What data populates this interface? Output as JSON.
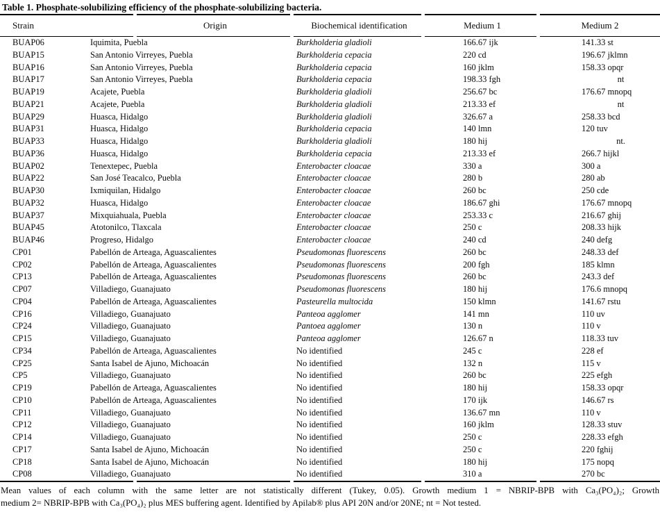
{
  "title": "Table 1. Phosphate-solubilizing efficiency of the phosphate-solubilizing bacteria.",
  "table": {
    "columns": [
      "Strain",
      "Origin",
      "Biochemical identification",
      "Medium 1",
      "Medium 2"
    ],
    "rows": [
      {
        "strain": "BUAP06",
        "origin": "Iquimita, Puebla",
        "id": "Burkholderia gladioli",
        "id_italic": true,
        "m1": "166.67 ijk",
        "m2": "141.33 st"
      },
      {
        "strain": "BUAP15",
        "origin": "San Antonio Virreyes, Puebla",
        "id": "Burkholderia cepacia",
        "id_italic": true,
        "m1": "220 cd",
        "m2": "196.67 jklmn"
      },
      {
        "strain": "BUAP16",
        "origin": "San Antonio Virreyes, Puebla",
        "id": "Burkholderia cepacia",
        "id_italic": true,
        "m1": "160 jklm",
        "m2": "158.33 opqr"
      },
      {
        "strain": "BUAP17",
        "origin": "San Antonio Virreyes, Puebla",
        "id": "Burkholderia cepacia",
        "id_italic": true,
        "m1": "198.33 fgh",
        "m2": "nt"
      },
      {
        "strain": "BUAP19",
        "origin": "Acajete, Puebla",
        "id": "Burkholderia gladioli",
        "id_italic": true,
        "m1": "256.67 bc",
        "m2": "176.67 mnopq"
      },
      {
        "strain": "BUAP21",
        "origin": "Acajete, Puebla",
        "id": "Burkholderia gladioli",
        "id_italic": true,
        "m1": "213.33 ef",
        "m2": "nt"
      },
      {
        "strain": "BUAP29",
        "origin": "Huasca, Hidalgo",
        "id": "Burkholderia gladioli",
        "id_italic": true,
        "m1": "326.67 a",
        "m2": "258.33 bcd"
      },
      {
        "strain": "BUAP31",
        "origin": "Huasca, Hidalgo",
        "id": "Burkholderia cepacia",
        "id_italic": true,
        "m1": "140 lmn",
        "m2": "120 tuv"
      },
      {
        "strain": "BUAP33",
        "origin": "Huasca, Hidalgo",
        "id": "Burkholderia gladioli",
        "id_italic": true,
        "m1": "180 hij",
        "m2": "nt."
      },
      {
        "strain": "BUAP36",
        "origin": "Huasca, Hidalgo",
        "id": "Burkholderia cepacia",
        "id_italic": true,
        "m1": "213.33 ef",
        "m2": "266.7 hijkl"
      },
      {
        "strain": "BUAP02",
        "origin": "Tenextepec, Puebla",
        "id": "Enterobacter cloacae",
        "id_italic": true,
        "m1": "330 a",
        "m2": "300 a"
      },
      {
        "strain": "BUAP22",
        "origin": "San José Teacalco, Puebla",
        "id": "Enterobacter cloacae",
        "id_italic": true,
        "m1": "280 b",
        "m2": "280 ab"
      },
      {
        "strain": "BUAP30",
        "origin": "Ixmiquilan, Hidalgo",
        "id": "Enterobacter cloacae",
        "id_italic": true,
        "m1": "260 bc",
        "m2": "250 cde"
      },
      {
        "strain": "BUAP32",
        "origin": "Huasca, Hidalgo",
        "id": "Enterobacter cloacae",
        "id_italic": true,
        "m1": "186.67 ghi",
        "m2": "176.67 mnopq"
      },
      {
        "strain": "BUAP37",
        "origin": "Mixquiahuala, Puebla",
        "id": "Enterobacter cloacae",
        "id_italic": true,
        "m1": "253.33 c",
        "m2": "216.67 ghij"
      },
      {
        "strain": "BUAP45",
        "origin": "Atotonilco, Tlaxcala",
        "id": "Enterobacter cloacae",
        "id_italic": true,
        "m1": "250 c",
        "m2": "208.33 hijk"
      },
      {
        "strain": "BUAP46",
        "origin": "Progreso, Hidalgo",
        "id": "Enterobacter cloacae",
        "id_italic": true,
        "m1": "240 cd",
        "m2": "240 defg"
      },
      {
        "strain": "CP01",
        "origin": "Pabellón de Arteaga, Aguascalientes",
        "id": "Pseudomonas fluorescens",
        "id_italic": true,
        "m1": "260 bc",
        "m2": "248.33 def"
      },
      {
        "strain": "CP02",
        "origin": "Pabellón de Arteaga, Aguascalientes",
        "id": "Pseudomonas fluorescens",
        "id_italic": true,
        "m1": "200 fgh",
        "m2": "185 klmn"
      },
      {
        "strain": "CP13",
        "origin": "Pabellón de Arteaga, Aguascalientes",
        "id": "Pseudomonas fluorescens",
        "id_italic": true,
        "m1": "260 bc",
        "m2": "243.3 def"
      },
      {
        "strain": "CP07",
        "origin": "Villadiego, Guanajuato",
        "id": "Pseudomonas fluorescens",
        "id_italic": true,
        "m1": "180 hij",
        "m2": "176.6 mnopq"
      },
      {
        "strain": "CP04",
        "origin": "Pabellón de Arteaga, Aguascalientes",
        "id": "Pasteurella multocida",
        "id_italic": true,
        "m1": "150 klmn",
        "m2": "141.67 rstu"
      },
      {
        "strain": "CP16",
        "origin": "Villadiego, Guanajuato",
        "id": "Panteoa agglomer",
        "id_italic": true,
        "m1": "141 mn",
        "m2": "110 uv"
      },
      {
        "strain": "CP24",
        "origin": "Villadiego, Guanajuato",
        "id": "Pantoea agglomer",
        "id_italic": true,
        "m1": "130 n",
        "m2": "110 v"
      },
      {
        "strain": "CP15",
        "origin": "Villadiego, Guanajuato",
        "id": "Panteoa agglomer",
        "id_italic": true,
        "m1": "126.67 n",
        "m2": "118.33 tuv"
      },
      {
        "strain": "CP34",
        "origin": "Pabellón de Arteaga, Aguascalientes",
        "id": "No identified",
        "id_italic": false,
        "m1": "245 c",
        "m2": "228 ef"
      },
      {
        "strain": "CP25",
        "origin": "Santa Isabel de Ajuno, Michoacán",
        "id": "No identified",
        "id_italic": false,
        "m1": "132 n",
        "m2": "115 v"
      },
      {
        "strain": "CP5",
        "origin": "Villadiego, Guanajuato",
        "id": "No identified",
        "id_italic": false,
        "m1": "260 bc",
        "m2": "225 efgh"
      },
      {
        "strain": "CP19",
        "origin": "Pabellón de Arteaga, Aguascalientes",
        "id": "No identified",
        "id_italic": false,
        "m1": "180 hij",
        "m2": "158.33 opqr"
      },
      {
        "strain": "CP10",
        "origin": "Pabellón de Arteaga, Aguascalientes",
        "id": "No identified",
        "id_italic": false,
        "m1": "170 ijk",
        "m2": "146.67 rs"
      },
      {
        "strain": "CP11",
        "origin": "Villadiego, Guanajuato",
        "id": "No identified",
        "id_italic": false,
        "m1": "136.67 mn",
        "m2": "110 v"
      },
      {
        "strain": "CP12",
        "origin": "Villadiego, Guanajuato",
        "id": "No identified",
        "id_italic": false,
        "m1": "160 jklm",
        "m2": "128.33 stuv"
      },
      {
        "strain": "CP14",
        "origin": "Villadiego, Guanajuato",
        "id": "No identified",
        "id_italic": false,
        "m1": "250 c",
        "m2": "228.33 efgh"
      },
      {
        "strain": "CP17",
        "origin": "Santa Isabel de Ajuno, Michoacán",
        "id": "No identified",
        "id_italic": false,
        "m1": "250 c",
        "m2": "220 fghij"
      },
      {
        "strain": "CP18",
        "origin": "Santa Isabel de Ajuno, Michoacán",
        "id": "No identified",
        "id_italic": false,
        "m1": "180 hij",
        "m2": "175 nopq"
      },
      {
        "strain": "CP08",
        "origin": "Villadiego, Guanajuato",
        "id": "No identified",
        "id_italic": false,
        "m1": "310 a",
        "m2": "270 bc"
      }
    ]
  },
  "footnote": {
    "line1": "Mean values of each column with the same letter are not statistically different (Tukey, 0.05). Growth medium 1 = NBRIP-BPB with Ca₃(PO₄)₂; Growth",
    "line2": "medium 2= NBRIP-BPB with Ca₃(PO₄)₂ plus MES buffering agent. Identified by Apilab® plus API 20N and/or 20NE; nt = Not tested."
  }
}
